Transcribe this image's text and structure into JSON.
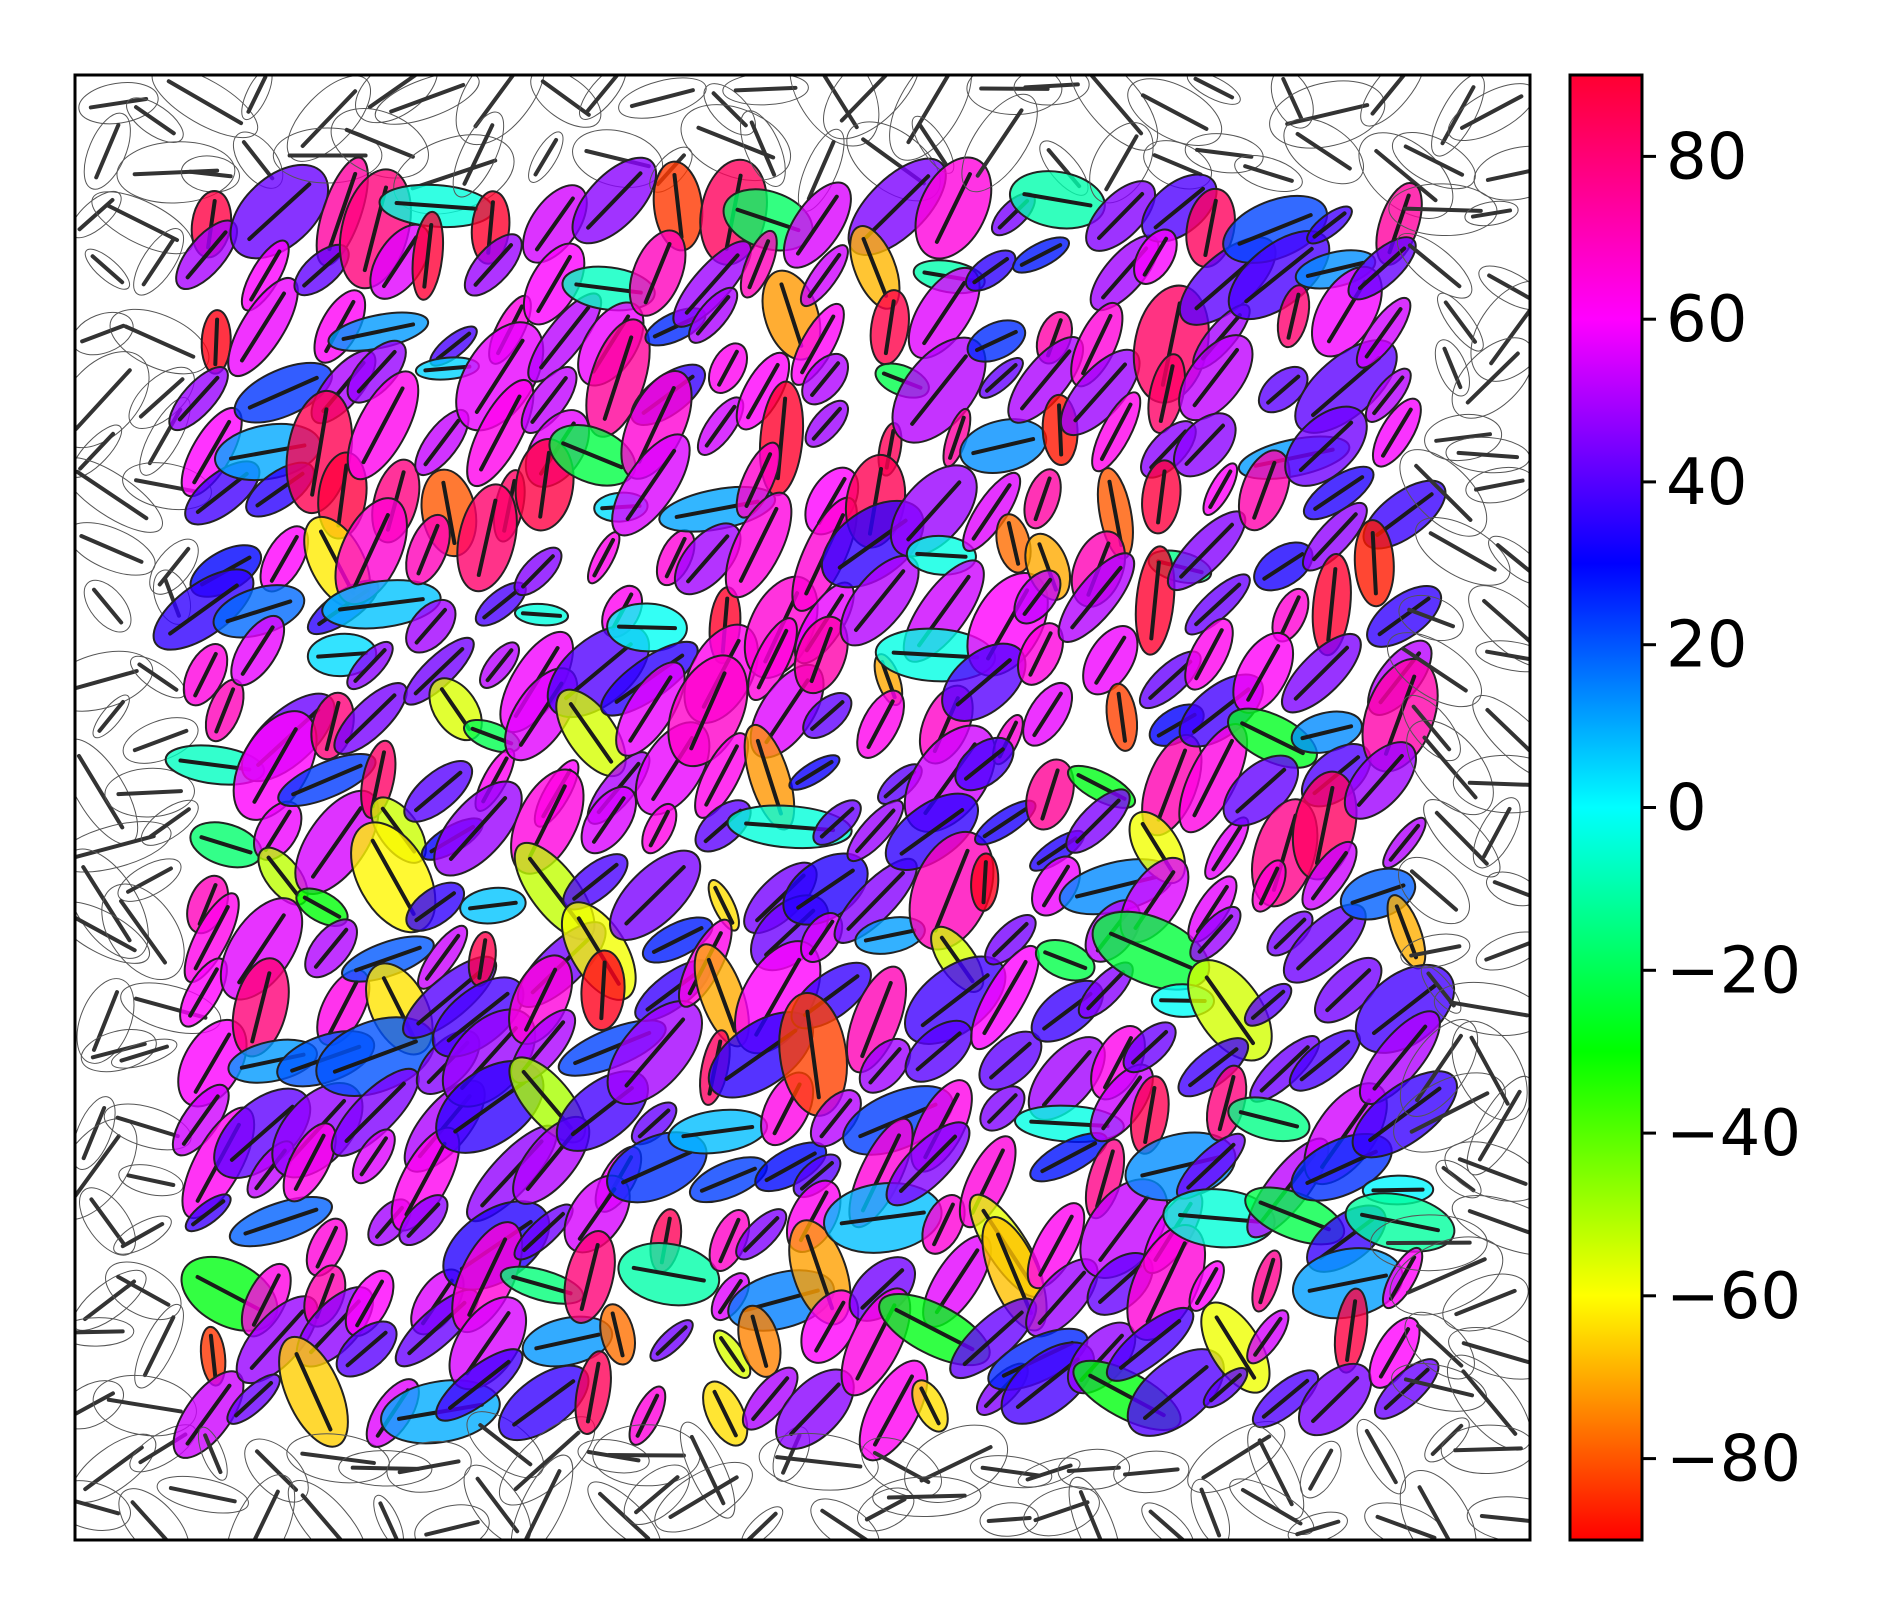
{
  "chart_data": {
    "type": "scatter",
    "marker": "ellipse",
    "encoding": "ellipse orientation angle in degrees, colour mapped to angle (hsv colormap); edge ellipses uncoloured",
    "title": "",
    "xlabel": "",
    "ylabel": "",
    "xlim": [
      0,
      1
    ],
    "ylim": [
      0,
      1
    ],
    "axis_ticks_shown": false,
    "grid": false,
    "colorbar": {
      "colormap": "hsv",
      "range": [
        -90,
        90
      ],
      "ticks": [
        -80,
        -60,
        -40,
        -20,
        0,
        20,
        40,
        60,
        80
      ],
      "tick_labels": [
        "−80",
        "−60",
        "−40",
        "−20",
        "0",
        "20",
        "40",
        "60",
        "80"
      ],
      "placement": "right"
    },
    "edge_style": {
      "fill": "none",
      "stroke": "#555555",
      "line": "#333333"
    },
    "grid_points": {
      "n": 26,
      "spacing": 0.04,
      "jitter_amplitude": 0.012,
      "coloured_region": [
        0.07,
        0.93,
        0.07,
        0.93
      ]
    }
  },
  "colors": {
    "axis": "#000000",
    "ellipse_stroke": "#222222",
    "orientation_line": "#1a1a1a"
  }
}
